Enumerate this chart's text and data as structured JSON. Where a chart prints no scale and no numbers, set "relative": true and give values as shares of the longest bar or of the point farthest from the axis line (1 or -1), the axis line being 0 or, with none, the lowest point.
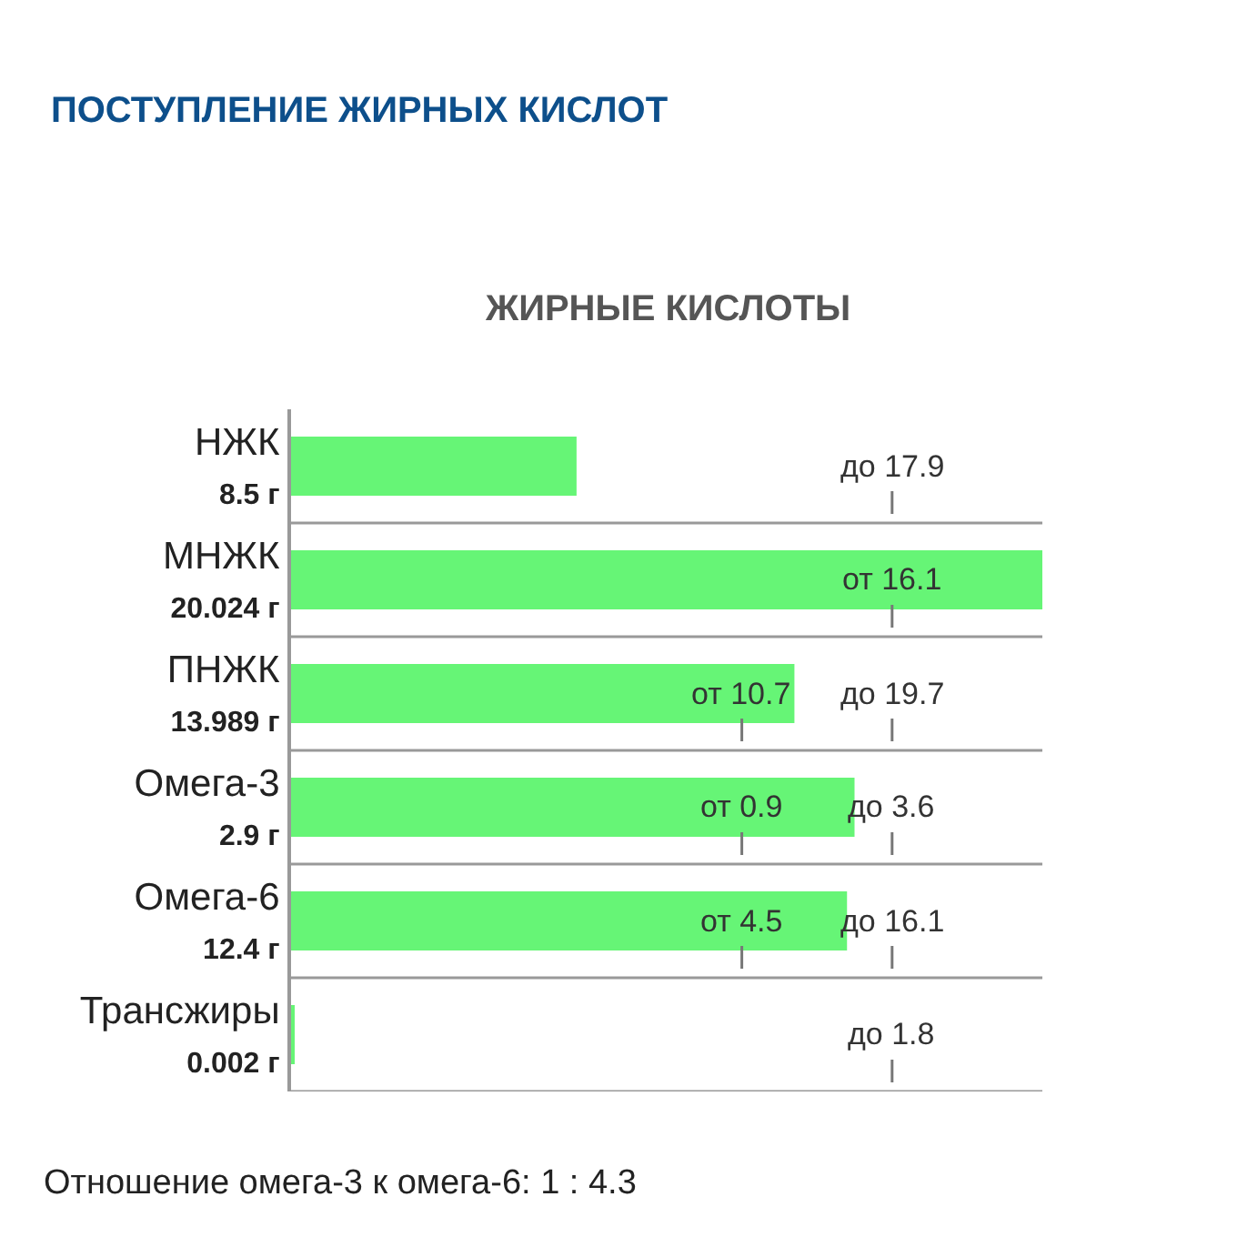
{
  "chart_data": {
    "type": "bar",
    "orientation": "horizontal",
    "relative": true,
    "title": "ПОСТУПЛЕНИЕ ЖИРНЫХ КИСЛОТ",
    "subtitle": "ЖИРНЫЕ КИСЛОТЫ",
    "categories": [
      "НЖК\n8.5 г",
      "МНЖК\n20.024 г",
      "ПНЖК\n13.989 г",
      "Омега-3\n2.9 г",
      "Омега-6\n12.4 г",
      "Трансжиры\n0.002 г"
    ],
    "values": [
      0.38,
      1.0,
      0.67,
      0.75,
      0.74,
      0.003
    ],
    "color": "#66f576",
    "annotations": [
      "до 17.9",
      "от 16.1",
      "от 10.7",
      "до 19.7",
      "от 0.9",
      "до 3.6",
      "от 4.5",
      "до 16.1",
      "до 1.8",
      "Отношение омега-3 к омега-6: 1 : 4.3"
    ]
  }
}
